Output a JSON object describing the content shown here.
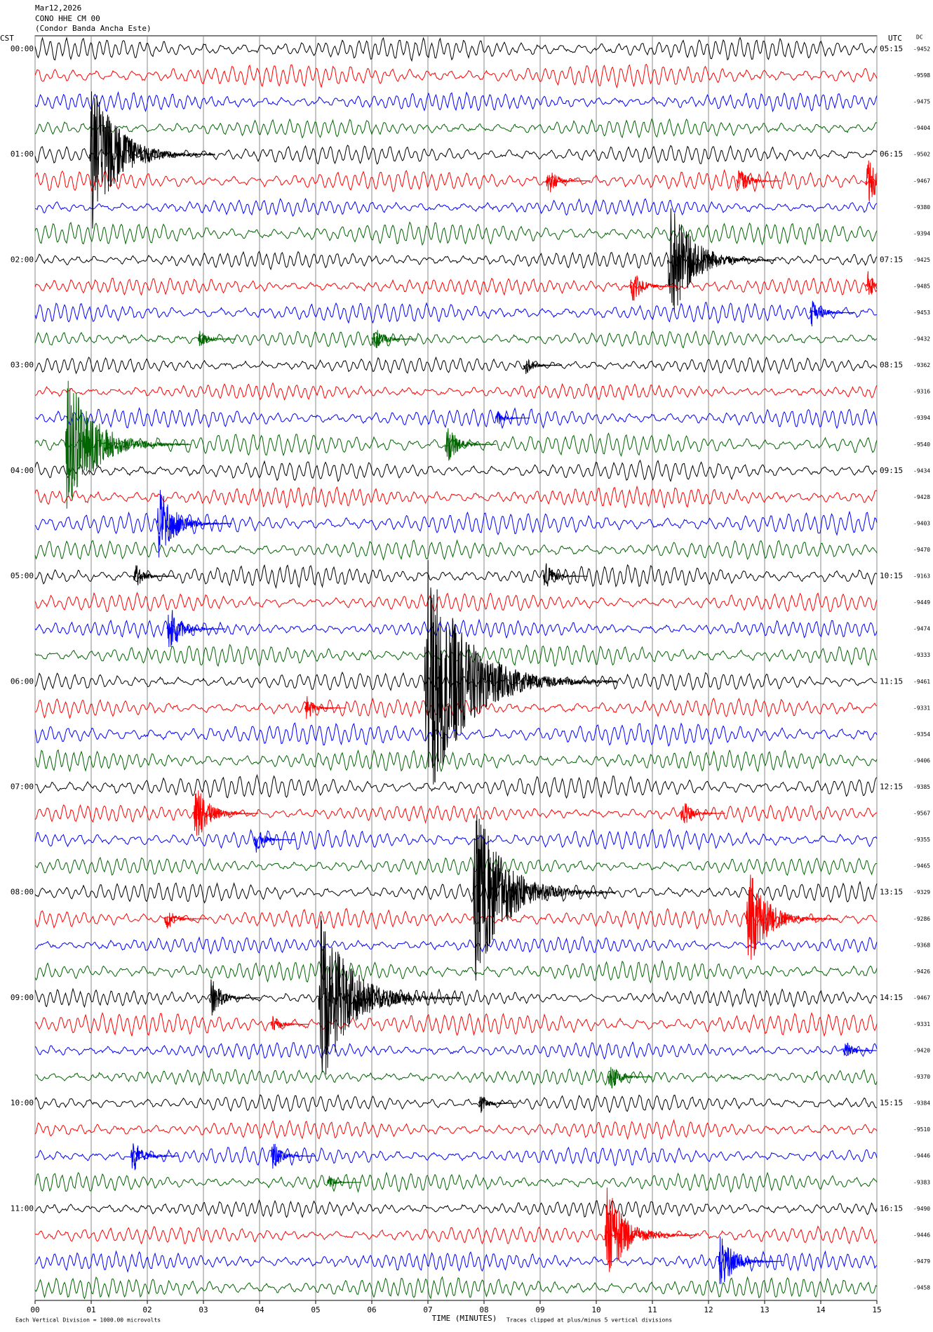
{
  "chart_data": {
    "type": "helicorder",
    "date": "Mar12,2026",
    "station": "CONO HHE CM 00",
    "station_name": "(Condor Banda Ancha Este)",
    "left_zone": "CST",
    "right_zone": "UTC",
    "dc_header": "DC",
    "cst_labels": [
      "00:00",
      "01:00",
      "02:00",
      "03:00",
      "04:00",
      "05:00",
      "06:00",
      "07:00",
      "08:00",
      "09:00",
      "10:00",
      "11:00"
    ],
    "utc_labels": [
      "05:15",
      "06:15",
      "07:15",
      "08:15",
      "09:15",
      "10:15",
      "11:15",
      "12:15",
      "13:15",
      "14:15",
      "15:15",
      "16:15"
    ],
    "dc_values": [
      -9452,
      -9598,
      -9475,
      -9404,
      -9502,
      -9467,
      -9380,
      -9394,
      -9425,
      -9485,
      -9453,
      -9432,
      -9362,
      -9316,
      -9394,
      -9540,
      -9434,
      -9428,
      -9403,
      -9470,
      -9163,
      -9449,
      -9474,
      -9333,
      -9461,
      -9331,
      -9354,
      -9406,
      -9385,
      -9567,
      -9355,
      -9465,
      -9329,
      -9286,
      -9368,
      -9426,
      -9467,
      -9331,
      -9420,
      -9370,
      -9384,
      -9510,
      -9446,
      -9383,
      -9490,
      -9446,
      -9479,
      -9458
    ],
    "trace_colors": [
      "#000000",
      "#ff0000",
      "#0000ff",
      "#006400"
    ],
    "xlim": [
      0,
      15
    ],
    "xticks": [
      {
        "value": 0,
        "label": "00"
      },
      {
        "value": 1,
        "label": "01"
      },
      {
        "value": 2,
        "label": "02"
      },
      {
        "value": 3,
        "label": "03"
      },
      {
        "value": 4,
        "label": "04"
      },
      {
        "value": 5,
        "label": "05"
      },
      {
        "value": 6,
        "label": "06"
      },
      {
        "value": 7,
        "label": "07"
      },
      {
        "value": 8,
        "label": "08"
      },
      {
        "value": 9,
        "label": "09"
      },
      {
        "value": 10,
        "label": "10"
      },
      {
        "value": 11,
        "label": "11"
      },
      {
        "value": 12,
        "label": "12"
      },
      {
        "value": 13,
        "label": "13"
      },
      {
        "value": 14,
        "label": "14"
      },
      {
        "value": 15,
        "label": "15"
      }
    ],
    "xlabel": "TIME (MINUTES)",
    "scale_note": "Each Vertical Division = 1000.00 microvolts",
    "clip_note": "Traces clipped at plus/minus 5 vertical divisions",
    "clip_divisions": 5,
    "events": [
      {
        "trace": 4,
        "minute": 0.97,
        "amplitude": 3
      },
      {
        "trace": 5,
        "minute": 9.1,
        "amplitude": 0.6
      },
      {
        "trace": 5,
        "minute": 12.5,
        "amplitude": 0.6
      },
      {
        "trace": 5,
        "minute": 14.8,
        "amplitude": 1
      },
      {
        "trace": 8,
        "minute": 11.27,
        "amplitude": 2.5
      },
      {
        "trace": 9,
        "minute": 10.6,
        "amplitude": 0.7
      },
      {
        "trace": 9,
        "minute": 14.8,
        "amplitude": 0.6
      },
      {
        "trace": 10,
        "minute": 13.8,
        "amplitude": 0.6
      },
      {
        "trace": 11,
        "minute": 6.0,
        "amplitude": 0.6
      },
      {
        "trace": 11,
        "minute": 2.9,
        "amplitude": 0.4
      },
      {
        "trace": 12,
        "minute": 8.7,
        "amplitude": 0.4
      },
      {
        "trace": 14,
        "minute": 8.2,
        "amplitude": 0.3
      },
      {
        "trace": 15,
        "minute": 0.53,
        "amplitude": 3
      },
      {
        "trace": 15,
        "minute": 7.3,
        "amplitude": 0.8
      },
      {
        "trace": 18,
        "minute": 2.17,
        "amplitude": 1.5
      },
      {
        "trace": 20,
        "minute": 1.75,
        "amplitude": 0.5
      },
      {
        "trace": 20,
        "minute": 9.05,
        "amplitude": 0.6
      },
      {
        "trace": 22,
        "minute": 2.35,
        "amplitude": 1
      },
      {
        "trace": 24,
        "minute": 6.93,
        "amplitude": 5
      },
      {
        "trace": 25,
        "minute": 4.8,
        "amplitude": 0.5
      },
      {
        "trace": 29,
        "minute": 2.82,
        "amplitude": 1.2
      },
      {
        "trace": 29,
        "minute": 11.5,
        "amplitude": 0.6
      },
      {
        "trace": 30,
        "minute": 3.9,
        "amplitude": 0.5
      },
      {
        "trace": 32,
        "minute": 7.8,
        "amplitude": 3.5
      },
      {
        "trace": 33,
        "minute": 2.3,
        "amplitude": 0.5
      },
      {
        "trace": 33,
        "minute": 12.67,
        "amplitude": 2
      },
      {
        "trace": 36,
        "minute": 5.05,
        "amplitude": 3.5
      },
      {
        "trace": 36,
        "minute": 3.1,
        "amplitude": 0.8
      },
      {
        "trace": 37,
        "minute": 4.2,
        "amplitude": 0.4
      },
      {
        "trace": 38,
        "minute": 14.4,
        "amplitude": 0.4
      },
      {
        "trace": 39,
        "minute": 10.2,
        "amplitude": 0.6
      },
      {
        "trace": 40,
        "minute": 7.9,
        "amplitude": 0.4
      },
      {
        "trace": 42,
        "minute": 1.7,
        "amplitude": 0.7
      },
      {
        "trace": 42,
        "minute": 4.2,
        "amplitude": 0.6
      },
      {
        "trace": 43,
        "minute": 5.2,
        "amplitude": 0.3
      },
      {
        "trace": 45,
        "minute": 10.15,
        "amplitude": 2
      },
      {
        "trace": 46,
        "minute": 12.17,
        "amplitude": 1.2
      }
    ]
  }
}
